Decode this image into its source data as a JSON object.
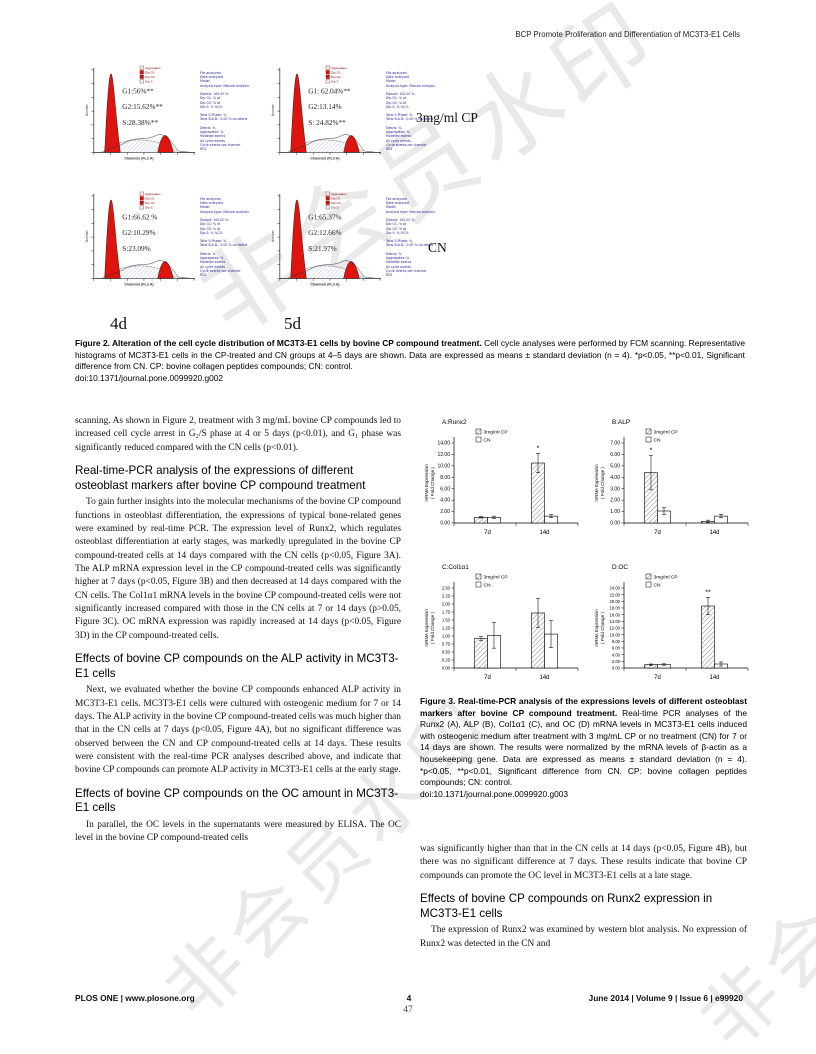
{
  "page": {
    "header": "BCP Promote Proliferation and Differentiation of MC3T3-E1 Cells",
    "watermark": "非会员水印",
    "footer": {
      "left": "PLOS ONE | www.plosone.org",
      "page": "4",
      "stamp": "47",
      "right": "June 2014 | Volume 9 | Issue 6 | e99920"
    }
  },
  "figure2": {
    "panels": [
      {
        "g1": "G1:56%**",
        "g2": "G2:15.62%**",
        "s": "S:28.38%**"
      },
      {
        "g1": "G1: 62.04%**",
        "g2": "G2:13.14%",
        "s": "S:  24.82%**"
      },
      {
        "g1": "G1:66.62 %",
        "g2": "G2:10.29%",
        "s": "S:23.09%"
      },
      {
        "g1": "G1:65.37%",
        "g2": "G2:12.66%",
        "s": "S:21.97%"
      }
    ],
    "legend": [
      "Aggregates",
      "Dip G1",
      "Dip G2",
      "Dip S"
    ],
    "axis": {
      "x": "Channels (FL2-A)",
      "y": "Number"
    },
    "stats_lines": "File analyzed\nDate analyzed\nModel\nAnalysis type: Manual analysis\n\nDiploid: 100.00 %\nDip G1: % at\nDip G2: % at\nDip S: %   %CV:\n\nTotal S-Phase: %\nTotal B.A.D.: 0.00 %  no debris\n\nDebris: %\nAggregates: %\nModeled events\nAll cycle events\nCycle events per channel\nRCS",
    "row_labels": [
      "3mg/ml CP",
      "CN"
    ],
    "col_labels": [
      "4d",
      "5d"
    ],
    "caption_bold": "Figure 2. Alteration of the cell cycle distribution of MC3T3-E1 cells by bovine CP compound treatment.",
    "caption_text": " Cell cycle analyses were performed by FCM scanning. Representative histograms of MC3T3-E1 cells in the CP-treated and CN groups at 4–5 days are shown. Data are expressed as means ± standard deviation (n = 4). *p<0.05, **p<0.01, Significant difference from CN. CP: bovine collagen peptides compounds; CN: control.",
    "doi": "doi:10.1371/journal.pone.0099920.g002"
  },
  "figure3": {
    "caption_bold": "Figure 3. Real-time-PCR analysis of the expressions levels of different osteoblast markers after bovine CP compound treatment.",
    "caption_text": " Real-time PCR analyses of the Runx2 (A), ALP (B), Col1α1 (C), and OC (D) mRNA levels in MC3T3-E1 cells induced with osteogenic medium after treatment with 3 mg/mL CP or no treatment (CN) for 7 or 14 days are shown. The results were normalized by the mRNA levels of β-actin as a housekeeping gene. Data are expressed as means ± standard deviation (n = 4). *p<0.05, **p<0.01, Significant difference from CN. CP: bovine collagen peptides compounds; CN: control.",
    "doi": "doi:10.1371/journal.pone.0099920.g003"
  },
  "chart_data": [
    {
      "type": "bar",
      "title": "A:Runx2",
      "categories": [
        "7d",
        "14d"
      ],
      "series": [
        {
          "name": "3mg/ml CP",
          "values": [
            1.0,
            10.5
          ],
          "errors": [
            0.12,
            1.7
          ],
          "sig": [
            "",
            "*"
          ]
        },
        {
          "name": "CN",
          "values": [
            1.0,
            1.2
          ],
          "errors": [
            0.2,
            0.25
          ],
          "sig": [
            "",
            ""
          ]
        }
      ],
      "ylabel": "mRNA Expression ( Fold Change )",
      "ylim": [
        0,
        14
      ],
      "ytick_step": 2,
      "legend_position": "top"
    },
    {
      "type": "bar",
      "title": "B:ALP",
      "categories": [
        "7d",
        "14d"
      ],
      "series": [
        {
          "name": "3mg/ml CP",
          "values": [
            4.4,
            0.15
          ],
          "errors": [
            1.5,
            0.1
          ],
          "sig": [
            "*",
            ""
          ]
        },
        {
          "name": "CN",
          "values": [
            1.05,
            0.6
          ],
          "errors": [
            0.3,
            0.15
          ],
          "sig": [
            "",
            ""
          ]
        }
      ],
      "ylabel": "mRNA Expression ( Fold Change )",
      "ylim": [
        0,
        7
      ],
      "ytick_step": 1,
      "legend_position": "top"
    },
    {
      "type": "bar",
      "title": "C:Col1α1",
      "categories": [
        "7d",
        "14d"
      ],
      "series": [
        {
          "name": "3mg/ml CP",
          "values": [
            0.92,
            1.72
          ],
          "errors": [
            0.06,
            0.45
          ],
          "sig": [
            "",
            ""
          ]
        },
        {
          "name": "CN",
          "values": [
            1.02,
            1.06
          ],
          "errors": [
            0.4,
            0.42
          ],
          "sig": [
            "",
            ""
          ]
        }
      ],
      "ylabel": "mRNA Expression ( Fold Change )",
      "ylim": [
        0,
        2.5
      ],
      "ytick_step": 0.25,
      "legend_position": "top"
    },
    {
      "type": "bar",
      "title": "D:OC",
      "categories": [
        "7d",
        "14d"
      ],
      "series": [
        {
          "name": "3mg/ml CP",
          "values": [
            1.0,
            18.6
          ],
          "errors": [
            0.2,
            2.6
          ],
          "sig": [
            "",
            "**"
          ]
        },
        {
          "name": "CN",
          "values": [
            1.05,
            1.2
          ],
          "errors": [
            0.2,
            0.6
          ],
          "sig": [
            "",
            ""
          ]
        }
      ],
      "ylabel": "mRNA Expression ( Fold Change )",
      "ylim": [
        0,
        24
      ],
      "ytick_step": 2,
      "legend_position": "top"
    }
  ],
  "body": {
    "left": [
      {
        "t": "p",
        "ind": false,
        "text": "scanning. As shown in Figure 2, treatment with 3 mg/mL bovine CP compounds led to increased cell cycle arrest in G₂/S phase at 4 or 5 days (p<0.01), and G₁ phase was significantly reduced compared with the CN cells (p<0.01)."
      },
      {
        "t": "h",
        "text": "Real-time-PCR analysis of the expressions of different osteoblast markers after bovine CP compound treatment"
      },
      {
        "t": "p",
        "ind": true,
        "text": "To gain further insights into the molecular mechanisms of the bovine CP compound functions in osteoblast differentiation, the expressions of typical bone-related genes were examined by real-time PCR. The expression level of Runx2, which regulates osteoblast differentiation at early stages, was markedly upregulated in the bovine CP compound-treated cells at 14 days compared with the CN cells (p<0.05, Figure 3A). The ALP mRNA expression level in the CP compound-treated cells was significantly higher at 7 days (p<0.05, Figure 3B) and then decreased at 14 days compared with the CN cells. The Col1α1 mRNA levels in the bovine CP compound-treated cells were not significantly increased compared with those in the CN cells at 7 or 14 days (p>0.05, Figure 3C). OC mRNA expression was rapidly increased at 14 days (p<0.05, Figure 3D) in the CP compound-treated cells."
      },
      {
        "t": "h",
        "text": "Effects of bovine CP compounds on the ALP activity in MC3T3-E1 cells"
      },
      {
        "t": "p",
        "ind": true,
        "text": "Next, we evaluated whether the bovine CP compounds enhanced ALP activity in MC3T3-E1 cells. MC3T3-E1 cells were cultured with osteogenic medium for 7 or 14 days. The ALP activity in the bovine CP compound-treated cells was much higher than that in the CN cells at 7 days (p<0.05, Figure 4A), but no significant difference was observed between the CN and CP compound-treated cells at 14 days. These results were consistent with the real-time PCR analyses described above, and indicate that bovine CP compounds can promote ALP activity in MC3T3-E1 cells at the early stage."
      },
      {
        "t": "h",
        "text": "Effects of bovine CP compounds on the OC amount in MC3T3-E1 cells"
      },
      {
        "t": "p",
        "ind": true,
        "text": "In parallel, the OC levels in the supernatants were measured by ELISA. The OC level in the bovine CP compound-treated cells"
      }
    ],
    "right": [
      {
        "t": "p",
        "ind": false,
        "text": "was significantly higher than that in the CN cells at 14 days (p<0.05, Figure 4B), but there was no significant difference at 7 days. These results indicate that bovine CP compounds can promote the OC level in MC3T3-E1 cells at a late stage."
      },
      {
        "t": "h",
        "text": "Effects of bovine CP compounds on Runx2 expression in MC3T3-E1 cells"
      },
      {
        "t": "p",
        "ind": true,
        "text": "The expression of Runx2 was examined by western blot analysis. No expression of Runx2 was detected in the CN and"
      }
    ]
  }
}
